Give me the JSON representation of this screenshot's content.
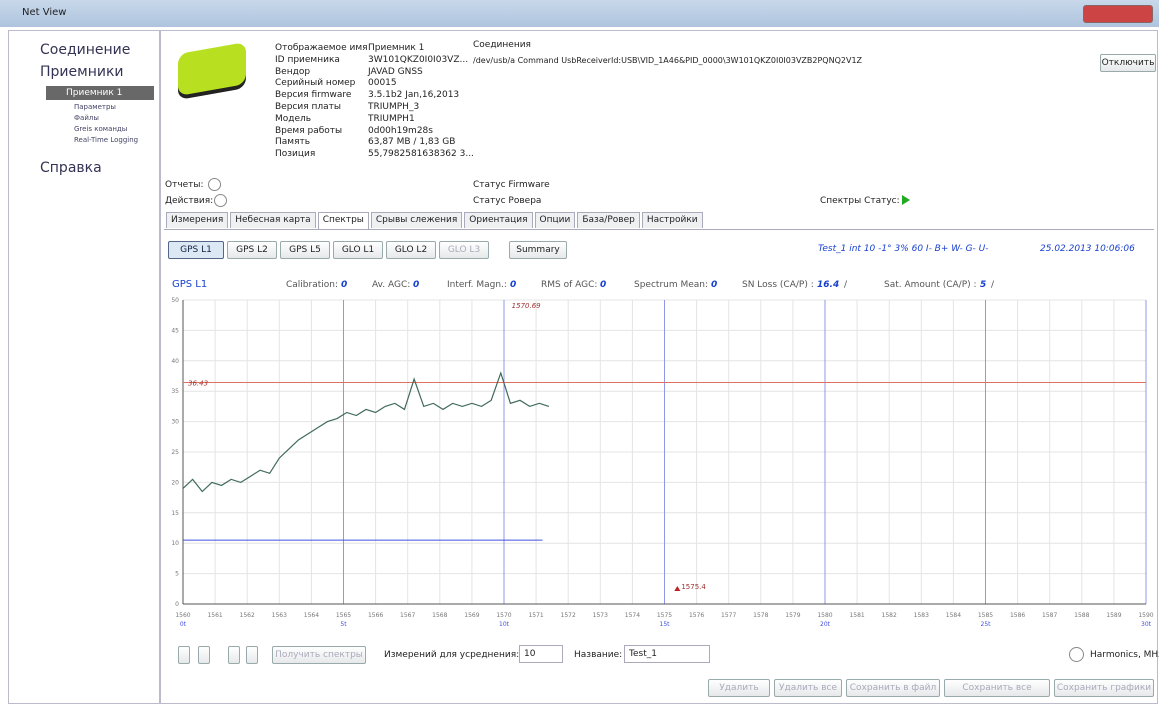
{
  "window": {
    "title": "Net View"
  },
  "sidebar": {
    "items": [
      "Соединение",
      "Приемники",
      "Справка"
    ],
    "receiver": "Приемник 1",
    "subitems": [
      "Параметры",
      "Файлы",
      "Greis команды",
      "Real-Time Logging"
    ]
  },
  "device": {
    "fields": [
      [
        "Отображаемое имя",
        "Приемник 1"
      ],
      [
        "ID приемника",
        "3W101QKZ0I0I03VZ..."
      ],
      [
        "Вендор",
        "JAVAD GNSS"
      ],
      [
        "Серийный номер",
        "00015"
      ],
      [
        "Версия firmware",
        "3.5.1b2 Jan,16,2013"
      ],
      [
        "Версия платы",
        "TRIUMPH_3"
      ],
      [
        "Модель",
        "TRIUMPH1"
      ],
      [
        "Время работы",
        "0d00h19m28s"
      ],
      [
        "Память",
        "63,87 MB / 1,83 GB"
      ],
      [
        "Позиция",
        "55,7982581638362 3..."
      ]
    ],
    "connections": "Соединения",
    "connection": "/dev/usb/a Command UsbReceiverId:USB\\VID_1A46&PID_0000\\3W101QKZ0I0I03VZB2PQNQ2V1Z",
    "disconnect": "Отключить",
    "reports": "Отчеты:",
    "actions": "Действия:",
    "firmware_status": "Статус Firmware",
    "rover_status": "Статус Ровера",
    "spectra_status": "Спектры Статус:"
  },
  "tabs": [
    "Измерения",
    "Небесная карта",
    "Спектры",
    "Срывы слежения",
    "Ориентация",
    "Опции",
    "База/Ровер",
    "Настройки"
  ],
  "bands": [
    "GPS L1",
    "GPS L2",
    "GPS L5",
    "GLO L1",
    "GLO L2",
    "GLO L3",
    "Summary"
  ],
  "status_line": "Test_1  int  10 -1° 3% 60 I- B+ W- G- U-",
  "timestamp": "25.02.2013 10:06:06",
  "chart_data": {
    "type": "line",
    "title": "GPS L1",
    "stats": [
      {
        "label": "Calibration:",
        "value": 0
      },
      {
        "label": "Av. AGC:",
        "value": 0
      },
      {
        "label": "Interf. Magn.:",
        "value": 0
      },
      {
        "label": "RMS of AGC:",
        "value": 0
      },
      {
        "label": "Spectrum Mean:",
        "value": 0
      },
      {
        "label": "SN Loss (CA/P) :",
        "value": 16.4,
        "suffix": "/"
      },
      {
        "label": "Sat. Amount (CA/P) :",
        "value": 5,
        "suffix": "/"
      }
    ],
    "x": [
      1560.0,
      1560.3,
      1560.6,
      1560.9,
      1561.2,
      1561.5,
      1561.8,
      1562.1,
      1562.4,
      1562.7,
      1563.0,
      1563.3,
      1563.6,
      1563.9,
      1564.2,
      1564.5,
      1564.8,
      1565.1,
      1565.4,
      1565.7,
      1566.0,
      1566.3,
      1566.6,
      1566.9,
      1567.2,
      1567.5,
      1567.8,
      1568.1,
      1568.4,
      1568.7,
      1569.0,
      1569.3,
      1569.6,
      1569.9,
      1570.2,
      1570.5,
      1570.8,
      1571.1,
      1571.4
    ],
    "values": [
      19,
      20.5,
      18.5,
      20,
      19.5,
      20.5,
      20,
      21,
      22,
      21.5,
      24,
      25.5,
      27,
      28,
      29,
      30,
      30.5,
      31.5,
      31,
      32,
      31.5,
      32.5,
      33,
      32,
      37,
      32.5,
      33,
      32,
      33,
      32.5,
      33,
      32.5,
      33.5,
      38,
      33,
      33.5,
      32.5,
      33,
      32.5
    ],
    "color": "#3f6a5a",
    "xlim": [
      1560,
      1590
    ],
    "ylim": [
      0,
      50
    ],
    "xticks": [
      1560,
      1561,
      1562,
      1563,
      1564,
      1565,
      1566,
      1567,
      1568,
      1569,
      1570,
      1571,
      1572,
      1573,
      1574,
      1575,
      1576,
      1577,
      1578,
      1579,
      1580,
      1581,
      1582,
      1583,
      1584,
      1585,
      1586,
      1587,
      1588,
      1589,
      1590
    ],
    "yticks": [
      0,
      5,
      10,
      15,
      20,
      25,
      30,
      35,
      40,
      45,
      50
    ],
    "time_ticks": [
      {
        "value": 1560,
        "label": "0t"
      },
      {
        "value": 1565,
        "label": "5t"
      },
      {
        "value": 1570,
        "label": "10t"
      },
      {
        "value": 1575,
        "label": "15t"
      },
      {
        "value": 1580,
        "label": "20t"
      },
      {
        "value": 1585,
        "label": "25t"
      },
      {
        "value": 1590,
        "label": "30t"
      }
    ],
    "threshold": {
      "value": 36.43,
      "color": "#e07060"
    },
    "noise_line": {
      "value": 10.5,
      "x": [
        1560,
        1571.2
      ],
      "color": "#4050e0"
    },
    "annotations": [
      {
        "x": 1570.69
      },
      {
        "x": 1575.4
      }
    ],
    "grid": true,
    "xlabel": "Harmonics, MHz"
  },
  "controls": {
    "fetch": "Получить спектры",
    "avg_label": "Измерений для усреднения:",
    "avg_value": "10",
    "name_label": "Название:",
    "name_value": "Test_1"
  },
  "buttons": [
    "Удалить",
    "Удалить все",
    "Сохранить в файл",
    "Сохранить все",
    "Сохранить графики"
  ]
}
